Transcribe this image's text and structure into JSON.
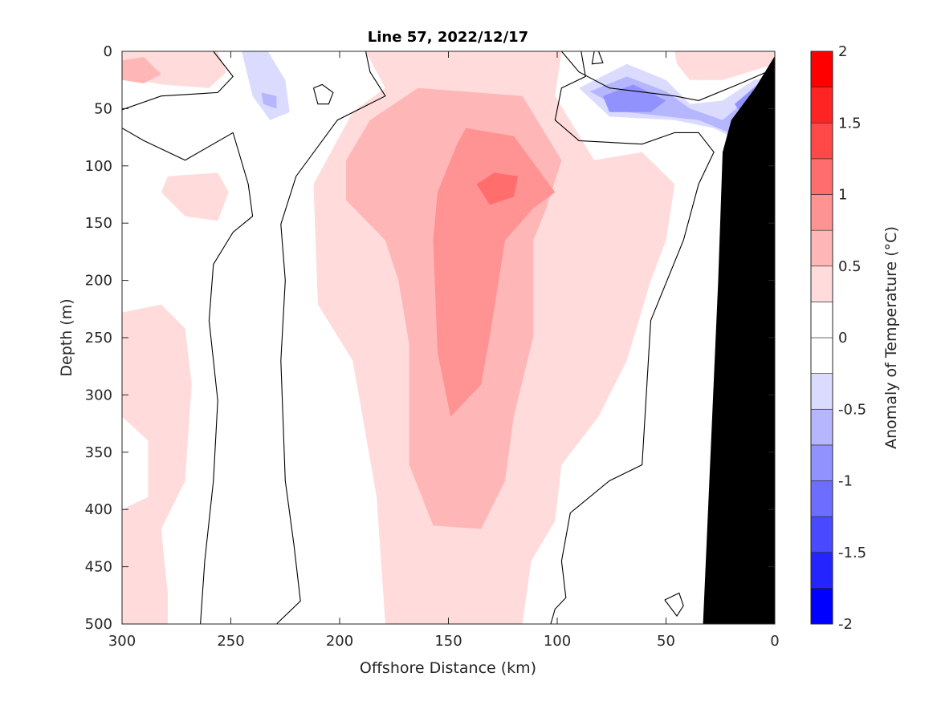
{
  "chart_data": {
    "type": "heatmap",
    "subtype": "filled-contour",
    "title": "Line 57, 2022/12/17",
    "xlabel": "Offshore Distance (km)",
    "ylabel": "Depth (m)",
    "xlim": [
      300,
      0
    ],
    "ylim": [
      0,
      500
    ],
    "x_reversed": true,
    "y_reversed": true,
    "xticks": [
      "300",
      "250",
      "200",
      "150",
      "100",
      "50",
      "0"
    ],
    "xtick_values": [
      300,
      250,
      200,
      150,
      100,
      50,
      0
    ],
    "yticks": [
      "0",
      "50",
      "100",
      "150",
      "200",
      "250",
      "300",
      "350",
      "400",
      "450",
      "500"
    ],
    "ytick_values": [
      0,
      50,
      100,
      150,
      200,
      250,
      300,
      350,
      400,
      450,
      500
    ],
    "colorbar": {
      "label": "Anomaly of Temperature (°C)",
      "range": [
        -2,
        2
      ],
      "level_step": 0.25,
      "ticks": [
        "2",
        "1.5",
        "1",
        "0.5",
        "0",
        "-0.5",
        "-1",
        "-1.5",
        "-2"
      ],
      "tick_values": [
        2,
        1.5,
        1,
        0.5,
        0,
        -0.5,
        -1,
        -1.5,
        -2
      ],
      "colors": [
        "#0000ff",
        "#2424ff",
        "#4949ff",
        "#6d6dff",
        "#9292ff",
        "#b6b6ff",
        "#dbdbff",
        "#ffffff",
        "#ffffff",
        "#ffdbdb",
        "#ffb6b6",
        "#ff9292",
        "#ff6d6d",
        "#ff4949",
        "#ff2424",
        "#ff0000"
      ]
    },
    "land_color": "#000000",
    "regions": [
      {
        "level": 0.25,
        "points": [
          [
            188,
            0
          ],
          [
            98,
            0
          ],
          [
            101,
            39
          ],
          [
            83,
            95
          ],
          [
            61,
            88
          ],
          [
            46,
            116
          ],
          [
            50,
            165
          ],
          [
            57,
            200
          ],
          [
            68,
            270
          ],
          [
            81,
            319
          ],
          [
            98,
            361
          ],
          [
            101,
            410
          ],
          [
            112,
            445
          ],
          [
            116,
            500
          ],
          [
            179,
            500
          ],
          [
            183,
            389
          ],
          [
            194,
            270
          ],
          [
            210,
            221
          ],
          [
            212,
            116
          ],
          [
            194,
            53
          ],
          [
            179,
            32
          ]
        ]
      },
      {
        "level": 0.25,
        "points": [
          [
            300,
            0
          ],
          [
            256,
            0
          ],
          [
            252,
            18
          ],
          [
            260,
            32
          ],
          [
            282,
            29
          ],
          [
            300,
            22
          ]
        ]
      },
      {
        "level": 0.25,
        "points": [
          [
            279,
            109
          ],
          [
            256,
            106
          ],
          [
            251,
            123
          ],
          [
            256,
            148
          ],
          [
            271,
            144
          ],
          [
            282,
            123
          ]
        ]
      },
      {
        "level": 0.25,
        "points": [
          [
            300,
            228
          ],
          [
            282,
            221
          ],
          [
            271,
            242
          ],
          [
            268,
            291
          ],
          [
            271,
            375
          ],
          [
            282,
            417
          ],
          [
            279,
            473
          ],
          [
            279,
            500
          ],
          [
            300,
            500
          ]
        ]
      },
      {
        "level": 0.25,
        "points": [
          [
            46,
            0
          ],
          [
            0,
            0
          ],
          [
            0,
            11
          ],
          [
            24,
            25
          ],
          [
            39,
            25
          ],
          [
            45,
            11
          ]
        ]
      },
      {
        "level": 0,
        "points": [
          [
            300,
            319
          ],
          [
            288,
            340
          ],
          [
            288,
            389
          ],
          [
            300,
            400
          ]
        ]
      },
      {
        "level": 0.5,
        "points": [
          [
            300,
            8
          ],
          [
            290,
            5
          ],
          [
            282,
            20
          ],
          [
            290,
            28
          ],
          [
            300,
            25
          ]
        ]
      },
      {
        "level": 0.5,
        "points": [
          [
            164,
            32
          ],
          [
            116,
            39
          ],
          [
            98,
            95
          ],
          [
            105,
            137
          ],
          [
            111,
            165
          ],
          [
            111,
            249
          ],
          [
            120,
            319
          ],
          [
            124,
            375
          ],
          [
            135,
            417
          ],
          [
            157,
            414
          ],
          [
            168,
            361
          ],
          [
            168,
            256
          ],
          [
            173,
            200
          ],
          [
            179,
            165
          ],
          [
            197,
            130
          ],
          [
            197,
            95
          ],
          [
            186,
            60
          ]
        ]
      },
      {
        "level": 0.75,
        "points": [
          [
            142,
            67
          ],
          [
            120,
            74
          ],
          [
            101,
            123
          ],
          [
            111,
            137
          ],
          [
            124,
            165
          ],
          [
            131,
            249
          ],
          [
            135,
            291
          ],
          [
            149,
            319
          ],
          [
            155,
            263
          ],
          [
            157,
            165
          ],
          [
            155,
            123
          ],
          [
            146,
            81
          ]
        ]
      },
      {
        "level": 1.0,
        "points": [
          [
            137,
            116
          ],
          [
            129,
            106
          ],
          [
            118,
            109
          ],
          [
            120,
            127
          ],
          [
            131,
            134
          ]
        ]
      },
      {
        "level": -0.25,
        "points": [
          [
            253,
            0
          ],
          [
            231,
            0
          ],
          [
            220,
            32
          ],
          [
            212,
            60
          ],
          [
            223,
            67
          ],
          [
            238,
            60
          ],
          [
            245,
            32
          ]
        ]
      },
      {
        "level": -0.25,
        "points": [
          [
            300,
            43
          ],
          [
            270,
            43
          ],
          [
            262,
            57
          ],
          [
            280,
            65
          ],
          [
            300,
            62
          ]
        ]
      },
      {
        "level": -0.25,
        "points": [
          [
            241,
            205
          ],
          [
            238,
            218
          ],
          [
            241,
            230
          ],
          [
            244,
            218
          ]
        ]
      },
      {
        "level": -0.25,
        "points": [
          [
            96,
            25
          ],
          [
            76,
            8
          ],
          [
            50,
            32
          ],
          [
            24,
            39
          ],
          [
            0,
            15
          ],
          [
            0,
            500
          ],
          [
            35,
            500
          ],
          [
            35,
            403
          ],
          [
            42,
            361
          ],
          [
            39,
            221
          ],
          [
            31,
            200
          ],
          [
            26,
            130
          ],
          [
            20,
            102
          ],
          [
            7,
            74
          ],
          [
            30,
            60
          ],
          [
            60,
            55
          ],
          [
            98,
            46
          ]
        ]
      },
      {
        "level": -0.5,
        "points": [
          [
            245,
            0
          ],
          [
            233,
            0
          ],
          [
            225,
            25
          ],
          [
            223,
            53
          ],
          [
            232,
            60
          ],
          [
            240,
            39
          ]
        ]
      },
      {
        "level": -0.5,
        "points": [
          [
            90,
            32
          ],
          [
            68,
            11
          ],
          [
            50,
            25
          ],
          [
            39,
            46
          ],
          [
            24,
            43
          ],
          [
            9.6,
            25
          ],
          [
            0,
            22
          ],
          [
            0,
            74
          ],
          [
            13,
            81
          ],
          [
            28,
            67
          ],
          [
            46,
            60
          ],
          [
            76,
            57
          ]
        ]
      },
      {
        "level": -0.75,
        "points": [
          [
            236,
            36
          ],
          [
            229,
            39
          ],
          [
            229,
            50
          ],
          [
            235,
            46
          ]
        ]
      },
      {
        "level": -0.75,
        "points": [
          [
            85,
            35
          ],
          [
            68,
            22
          ],
          [
            50,
            35
          ],
          [
            39,
            50
          ],
          [
            24,
            60
          ],
          [
            11,
            39
          ],
          [
            0,
            32
          ],
          [
            0,
            71
          ],
          [
            17,
            74
          ],
          [
            35,
            60
          ],
          [
            68,
            53
          ]
        ]
      },
      {
        "level": -1.0,
        "points": [
          [
            79,
            39
          ],
          [
            65,
            29
          ],
          [
            50,
            43
          ],
          [
            57,
            53
          ],
          [
            76,
            53
          ]
        ]
      },
      {
        "level": -1.0,
        "points": [
          [
            18.5,
            46
          ],
          [
            5.5,
            25
          ],
          [
            0,
            22
          ],
          [
            0,
            67
          ],
          [
            13,
            60
          ]
        ]
      },
      {
        "level": -1.25,
        "points": [
          [
            4,
            32
          ],
          [
            0,
            29
          ],
          [
            0,
            57
          ],
          [
            7,
            53
          ]
        ]
      }
    ],
    "land": [
      [
        33,
        500
      ],
      [
        26,
        200
      ],
      [
        24,
        88
      ],
      [
        20,
        60
      ],
      [
        9,
        32
      ],
      [
        0,
        4
      ],
      [
        0,
        500
      ]
    ],
    "zero_contours": [
      [
        [
          300,
          51
        ],
        [
          282,
          39
        ],
        [
          256,
          36
        ],
        [
          249,
          22
        ],
        [
          258,
          0
        ]
      ],
      [
        [
          300,
          67
        ],
        [
          290,
          78
        ],
        [
          271,
          95
        ],
        [
          249,
          71
        ],
        [
          242,
          116
        ],
        [
          240,
          144
        ],
        [
          249,
          158
        ],
        [
          258,
          186
        ],
        [
          260,
          235
        ],
        [
          256,
          305
        ],
        [
          258,
          375
        ],
        [
          262,
          445
        ],
        [
          264,
          500
        ]
      ],
      [
        [
          229,
          500
        ],
        [
          218,
          480
        ],
        [
          221,
          431
        ],
        [
          225,
          375
        ],
        [
          227,
          270
        ],
        [
          225,
          200
        ],
        [
          227,
          151
        ],
        [
          220,
          109
        ],
        [
          201,
          60
        ],
        [
          179,
          39
        ],
        [
          186,
          18
        ],
        [
          188,
          0
        ]
      ],
      [
        [
          212,
          32
        ],
        [
          208,
          29
        ],
        [
          203,
          36
        ],
        [
          205,
          46
        ],
        [
          210,
          46
        ],
        [
          212,
          32
        ]
      ],
      [
        [
          89,
          0
        ],
        [
          87,
          22
        ],
        [
          98,
          32
        ],
        [
          101,
          60
        ],
        [
          90,
          78
        ],
        [
          61,
          81
        ],
        [
          46,
          71
        ],
        [
          35,
          71
        ],
        [
          28,
          88
        ],
        [
          35,
          116
        ],
        [
          42,
          165
        ],
        [
          57,
          235
        ],
        [
          61,
          361
        ],
        [
          76,
          375
        ],
        [
          94,
          403
        ],
        [
          98,
          445
        ],
        [
          96,
          477
        ],
        [
          101,
          487
        ],
        [
          103,
          500
        ]
      ],
      [
        [
          98,
          0
        ],
        [
          90,
          18
        ],
        [
          76,
          32
        ],
        [
          46,
          39
        ],
        [
          35,
          43
        ],
        [
          17,
          29
        ],
        [
          0,
          15
        ]
      ],
      [
        [
          83,
          0
        ],
        [
          84,
          11
        ],
        [
          79,
          10
        ],
        [
          81,
          0
        ]
      ],
      [
        [
          50.6,
          479
        ],
        [
          44,
          473
        ],
        [
          42,
          484
        ],
        [
          45,
          493
        ],
        [
          50.6,
          479
        ]
      ]
    ]
  }
}
